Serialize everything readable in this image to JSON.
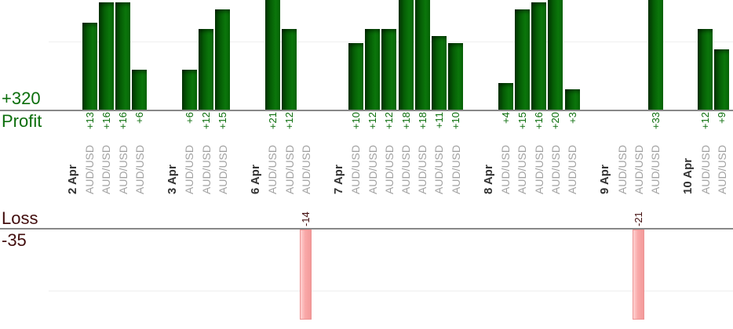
{
  "chart_data": {
    "type": "bar",
    "description_visible_text_only": true,
    "profit_axis": {
      "total": "+320",
      "title": "Profit"
    },
    "loss_axis": {
      "title": "Loss",
      "total": "-35"
    },
    "colors": {
      "profit_bar": "#0a6e0a",
      "loss_bar": "#f8a6a6",
      "profit_text": "#0c6e0c",
      "loss_text": "#420d0d",
      "date_text": "#333333",
      "symbol_text": "#a2a2a2",
      "axis_line": "#888888",
      "grid_line": "#efefef"
    },
    "layout_hints": {
      "grid": true,
      "x_labels_rotated_degrees": -90,
      "bar_value_labels_rotated": true,
      "profit_bars_above_baseline": true,
      "loss_bars_below_second_baseline": true,
      "tall_bars_clipped_at_top": true
    },
    "groups": [
      {
        "date": "2 Apr",
        "trades": [
          {
            "symbol": "AUD/USD",
            "value": 13,
            "label": "+13"
          },
          {
            "symbol": "AUD/USD",
            "value": 16,
            "label": "+16"
          },
          {
            "symbol": "AUD/USD",
            "value": 16,
            "label": "+16"
          },
          {
            "symbol": "AUD/USD",
            "value": 6,
            "label": "+6"
          }
        ]
      },
      {
        "date": "3 Apr",
        "trades": [
          {
            "symbol": "AUD/USD",
            "value": 6,
            "label": "+6"
          },
          {
            "symbol": "AUD/USD",
            "value": 12,
            "label": "+12"
          },
          {
            "symbol": "AUD/USD",
            "value": 15,
            "label": "+15"
          }
        ]
      },
      {
        "date": "6 Apr",
        "trades": [
          {
            "symbol": "AUD/USD",
            "value": 21,
            "label": "+21"
          },
          {
            "symbol": "AUD/USD",
            "value": 12,
            "label": "+12"
          },
          {
            "symbol": "AUD/USD",
            "value": -14,
            "label": "-14"
          }
        ]
      },
      {
        "date": "7 Apr",
        "trades": [
          {
            "symbol": "AUD/USD",
            "value": 10,
            "label": "+10"
          },
          {
            "symbol": "AUD/USD",
            "value": 12,
            "label": "+12"
          },
          {
            "symbol": "AUD/USD",
            "value": 12,
            "label": "+12"
          },
          {
            "symbol": "AUD/USD",
            "value": 18,
            "label": "+18"
          },
          {
            "symbol": "AUD/USD",
            "value": 18,
            "label": "+18"
          },
          {
            "symbol": "AUD/USD",
            "value": 11,
            "label": "+11"
          },
          {
            "symbol": "AUD/USD",
            "value": 10,
            "label": "+10"
          }
        ]
      },
      {
        "date": "8 Apr",
        "trades": [
          {
            "symbol": "AUD/USD",
            "value": 4,
            "label": "+4"
          },
          {
            "symbol": "AUD/USD",
            "value": 15,
            "label": "+15"
          },
          {
            "symbol": "AUD/USD",
            "value": 16,
            "label": "+16"
          },
          {
            "symbol": "AUD/USD",
            "value": 20,
            "label": "+20"
          },
          {
            "symbol": "AUD/USD",
            "value": 3,
            "label": "+3"
          }
        ]
      },
      {
        "date": "9 Apr",
        "trades": [
          {
            "symbol": "AUD/USD",
            "value": null,
            "label": ""
          },
          {
            "symbol": "AUD/USD",
            "value": -21,
            "label": "-21"
          },
          {
            "symbol": "AUD/USD",
            "value": 33,
            "label": "+33"
          }
        ]
      },
      {
        "date": "10 Apr",
        "trades": [
          {
            "symbol": "AUD/USD",
            "value": 12,
            "label": "+12"
          },
          {
            "symbol": "AUD/USD",
            "value": 9,
            "label": "+9"
          }
        ]
      }
    ]
  }
}
